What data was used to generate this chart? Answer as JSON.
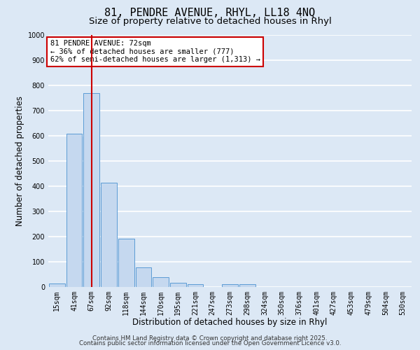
{
  "title1": "81, PENDRE AVENUE, RHYL, LL18 4NQ",
  "title2": "Size of property relative to detached houses in Rhyl",
  "xlabel": "Distribution of detached houses by size in Rhyl",
  "ylabel": "Number of detached properties",
  "bin_labels": [
    "15sqm",
    "41sqm",
    "67sqm",
    "92sqm",
    "118sqm",
    "144sqm",
    "170sqm",
    "195sqm",
    "221sqm",
    "247sqm",
    "273sqm",
    "298sqm",
    "324sqm",
    "350sqm",
    "376sqm",
    "401sqm",
    "427sqm",
    "453sqm",
    "479sqm",
    "504sqm",
    "530sqm"
  ],
  "bar_values": [
    15,
    607,
    770,
    415,
    193,
    77,
    40,
    18,
    12,
    0,
    10,
    10,
    0,
    0,
    0,
    0,
    0,
    0,
    0,
    0,
    0
  ],
  "bar_color": "#c5d8ef",
  "bar_edge_color": "#5b9bd5",
  "bg_color": "#dce8f5",
  "grid_color": "#ffffff",
  "vline_x": 2.0,
  "vline_color": "#cc0000",
  "annotation_title": "81 PENDRE AVENUE: 72sqm",
  "annotation_line1": "← 36% of detached houses are smaller (777)",
  "annotation_line2": "62% of semi-detached houses are larger (1,313) →",
  "annotation_box_color": "#ffffff",
  "annotation_box_edge": "#cc0000",
  "ylim": [
    0,
    1000
  ],
  "yticks": [
    0,
    100,
    200,
    300,
    400,
    500,
    600,
    700,
    800,
    900,
    1000
  ],
  "footer1": "Contains HM Land Registry data © Crown copyright and database right 2025.",
  "footer2": "Contains public sector information licensed under the Open Government Licence v3.0.",
  "title_fontsize": 11,
  "subtitle_fontsize": 9.5,
  "axis_label_fontsize": 8.5,
  "tick_fontsize": 7,
  "annotation_fontsize": 7.5,
  "footer_fontsize": 6.2
}
